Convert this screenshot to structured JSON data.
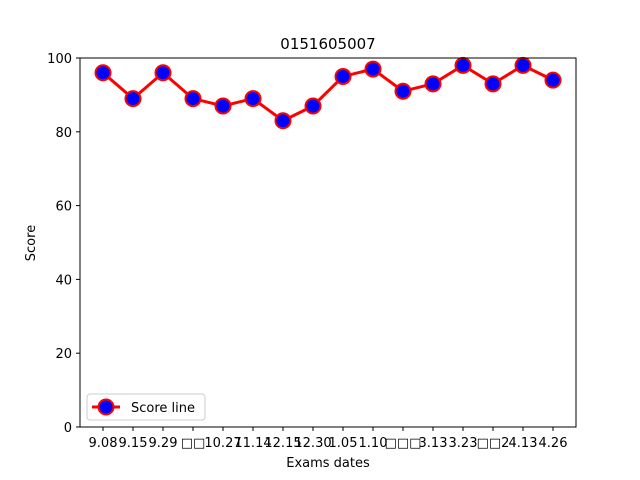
{
  "chart_data": {
    "type": "line",
    "title": "0151605007",
    "xlabel": "Exams dates",
    "ylabel": "Score",
    "ylim": [
      0,
      100
    ],
    "yticks": [
      0,
      20,
      40,
      60,
      80,
      100
    ],
    "categories": [
      "9.08",
      "9.15",
      "9.29",
      "□□",
      "10.27",
      "11.14",
      "12.15",
      "12.30",
      "1.05",
      "1.10",
      "□□□",
      "3.13",
      "3.23",
      "□□2",
      "4.13",
      "4.26"
    ],
    "series": [
      {
        "name": "Score line",
        "values": [
          96,
          89,
          96,
          89,
          87,
          89,
          83,
          87,
          95,
          97,
          91,
          93,
          98,
          93,
          98,
          94
        ],
        "line_color": "#ff0000",
        "marker_face": "#0000ff",
        "marker_edge": "#ff0000"
      }
    ],
    "grid": false,
    "legend_position": "lower-left"
  }
}
